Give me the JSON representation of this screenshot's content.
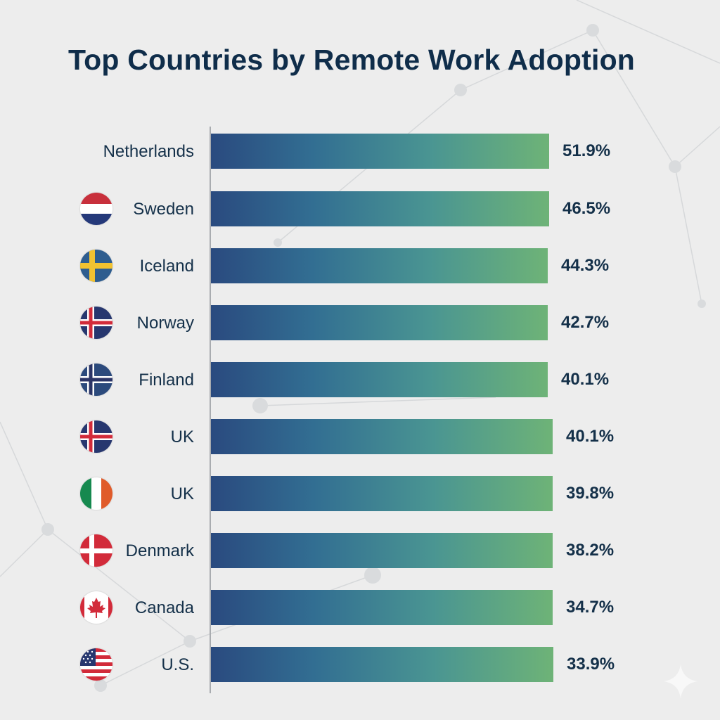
{
  "chart_data": {
    "type": "bar",
    "orientation": "horizontal",
    "title": "Top Countries by Remote Work Adoption",
    "categories": [
      "Netherlands",
      "Sweden",
      "Iceland",
      "Norway",
      "Finland",
      "UK",
      "UK",
      "Denmark",
      "Canada",
      "U.S."
    ],
    "values": [
      51.9,
      46.5,
      44.3,
      42.7,
      40.1,
      40.1,
      39.8,
      38.2,
      34.7,
      33.9
    ],
    "data_labels": [
      "51.9%",
      "46.5%",
      "44.3%",
      "42.7%",
      "40.1%",
      "40.1%",
      "39.8%",
      "38.2%",
      "34.7%",
      "33.9%"
    ],
    "flags": [
      "none",
      "netherlands-flag",
      "sweden-flag",
      "iceland-flag",
      "norway-flag",
      "iceland-flag",
      "ireland-flag",
      "denmark-flag",
      "canada-flag",
      "usa-flag"
    ],
    "grid": false,
    "legend": "none",
    "colors": {
      "bar_start": "#2a4a7f",
      "bar_end": "#6eb377",
      "text": "#143049",
      "title": "#0f2d4a",
      "background": "#ededed"
    }
  }
}
